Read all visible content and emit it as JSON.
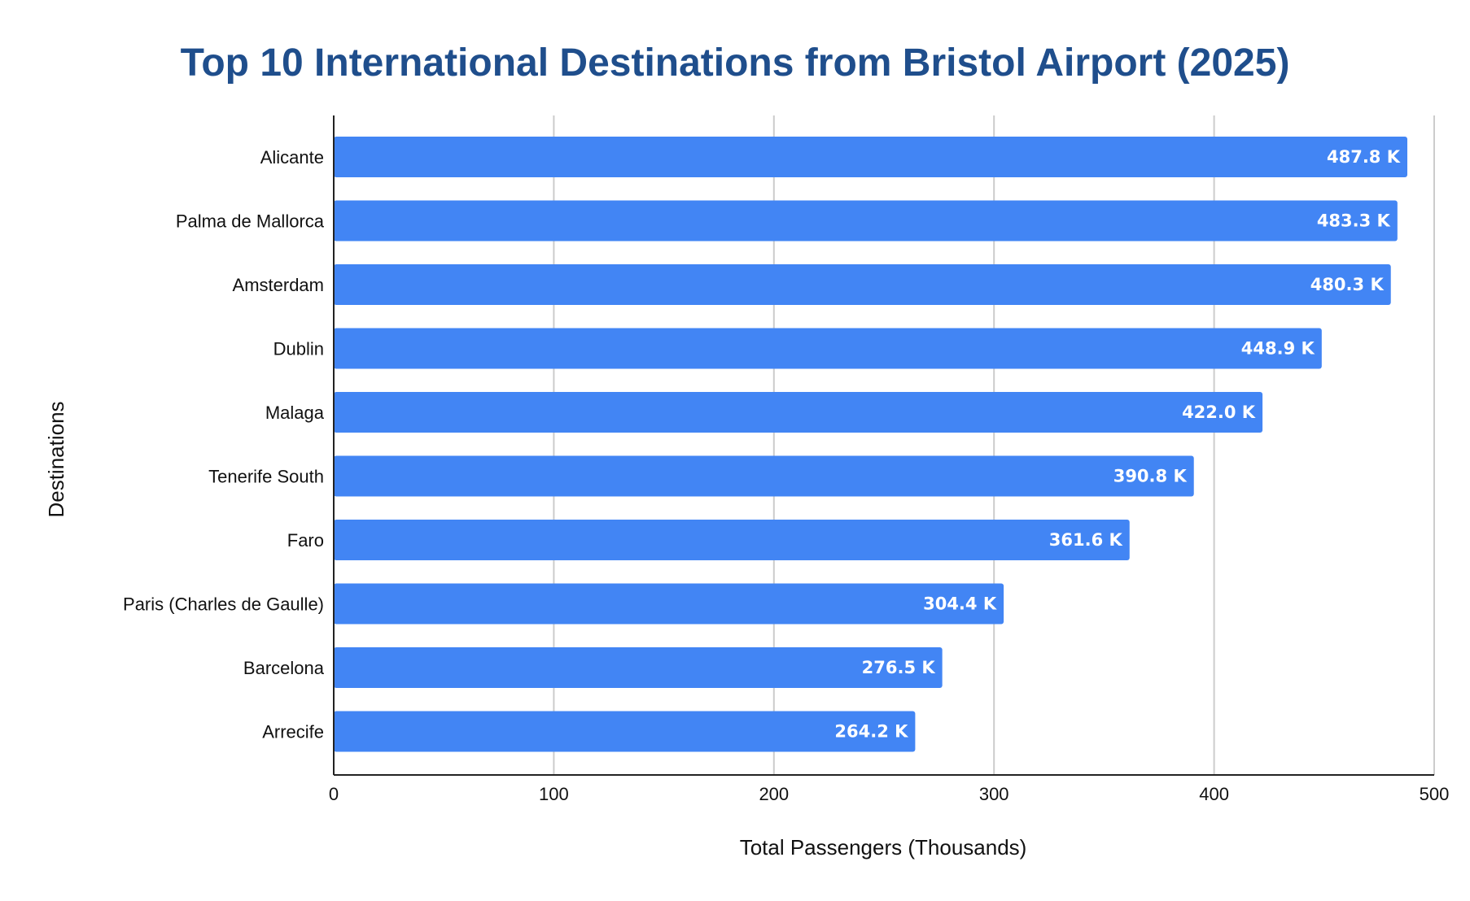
{
  "chart_data": {
    "type": "bar",
    "orientation": "horizontal",
    "title": "Top 10 International Destinations from Bristol Airport (2025)",
    "xlabel": "Total Passengers (Thousands)",
    "ylabel": "Destinations",
    "categories": [
      "Alicante",
      "Palma de Mallorca",
      "Amsterdam",
      "Dublin",
      "Malaga",
      "Tenerife South",
      "Faro",
      "Paris (Charles de Gaulle)",
      "Barcelona",
      "Arrecife"
    ],
    "values": [
      487.8,
      483.3,
      480.3,
      448.9,
      422.0,
      390.8,
      361.6,
      304.4,
      276.5,
      264.2
    ],
    "data_labels": [
      "487.8 K",
      "483.3 K",
      "480.3 K",
      "448.9 K",
      "422.0 K",
      "390.8 K",
      "361.6 K",
      "304.4 K",
      "276.5 K",
      "264.2 K"
    ],
    "xlim": [
      0,
      500
    ],
    "xticks": [
      0,
      100,
      200,
      300,
      400,
      500
    ],
    "grid": true,
    "legend": "none",
    "colors": {
      "bar": "#4285f4",
      "title": "#1f4e8c",
      "grid": "#cccccc",
      "axis": "#222222"
    }
  }
}
